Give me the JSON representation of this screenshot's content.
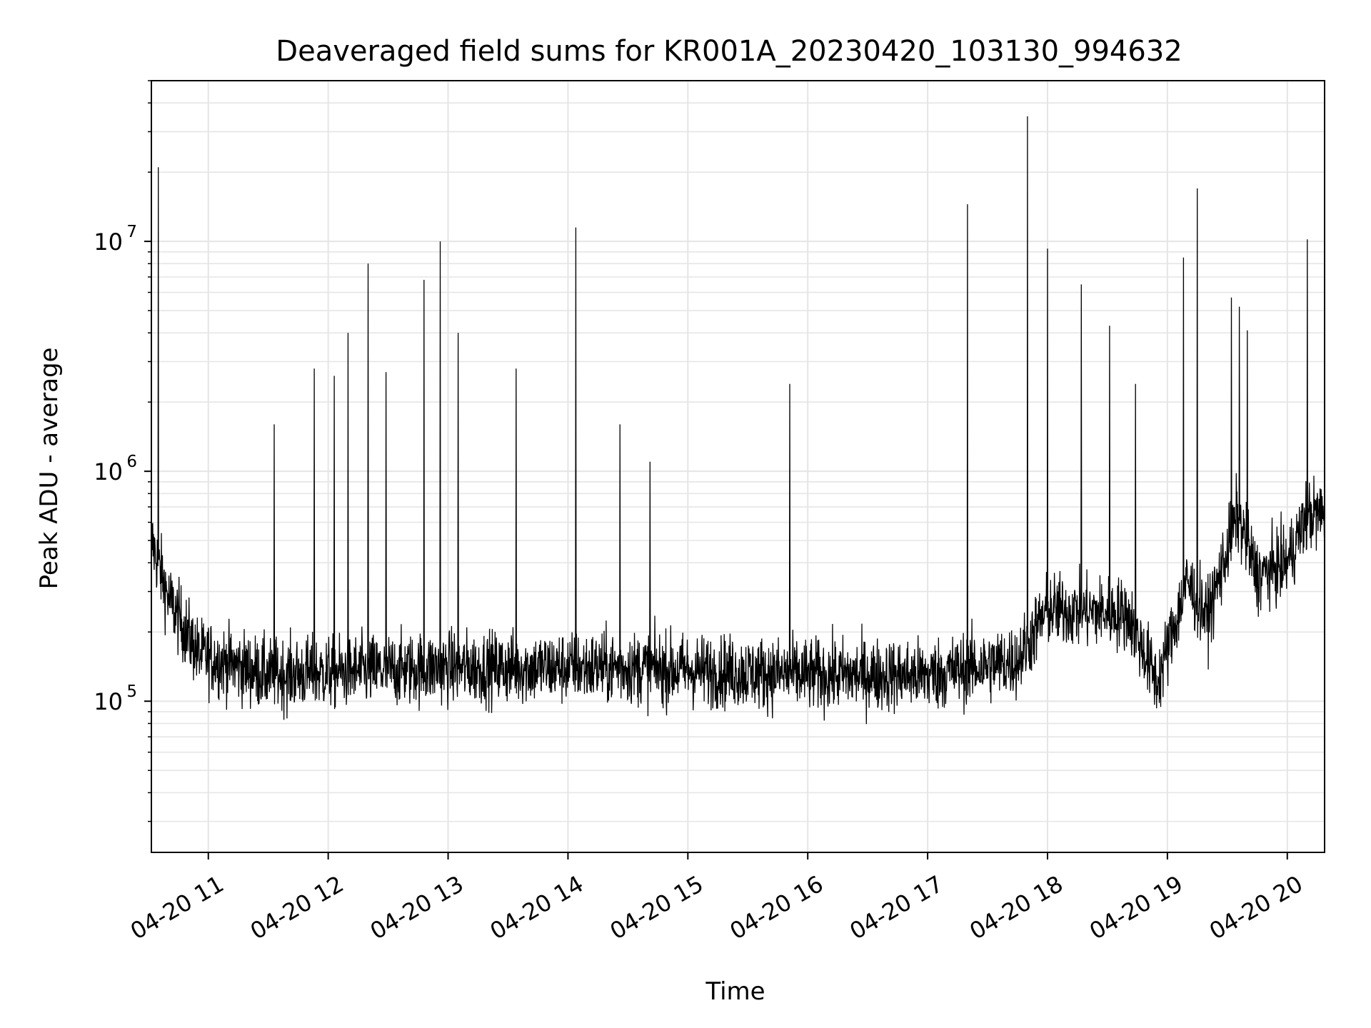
{
  "chart_data": {
    "type": "line",
    "title": "Deaveraged field sums for KR001A_20230420_103130_994632",
    "xlabel": "Time",
    "ylabel": "Peak ADU - average",
    "yscale": "log",
    "ylim": [
      22000,
      50000000
    ],
    "xlim": [
      "2023-04-20 10:31:30",
      "2023-04-20 20:18:40"
    ],
    "grid": true,
    "line_color": "#000000",
    "grid_color": "#e5e5e5",
    "x_ticks": [
      {
        "time": "2023-04-20 11:00",
        "label": "04-20 11"
      },
      {
        "time": "2023-04-20 12:00",
        "label": "04-20 12"
      },
      {
        "time": "2023-04-20 13:00",
        "label": "04-20 13"
      },
      {
        "time": "2023-04-20 14:00",
        "label": "04-20 14"
      },
      {
        "time": "2023-04-20 15:00",
        "label": "04-20 15"
      },
      {
        "time": "2023-04-20 16:00",
        "label": "04-20 16"
      },
      {
        "time": "2023-04-20 17:00",
        "label": "04-20 17"
      },
      {
        "time": "2023-04-20 18:00",
        "label": "04-20 18"
      },
      {
        "time": "2023-04-20 19:00",
        "label": "04-20 19"
      },
      {
        "time": "2023-04-20 20:00",
        "label": "04-20 20"
      }
    ],
    "y_ticks": [
      {
        "value": 100000,
        "base": "10",
        "exp": "5"
      },
      {
        "value": 1000000,
        "base": "10",
        "exp": "6"
      },
      {
        "value": 10000000,
        "base": "10",
        "exp": "7"
      }
    ],
    "series": [
      {
        "baseline": [
          {
            "time": "2023-04-20 10:31:30",
            "value": 500000
          },
          {
            "time": "2023-04-20 10:40",
            "value": 280000
          },
          {
            "time": "2023-04-20 10:55",
            "value": 160000
          },
          {
            "time": "2023-04-20 11:30",
            "value": 130000
          },
          {
            "time": "2023-04-20 13:00",
            "value": 140000
          },
          {
            "time": "2023-04-20 14:30",
            "value": 140000
          },
          {
            "time": "2023-04-20 16:00",
            "value": 130000
          },
          {
            "time": "2023-04-20 17:00",
            "value": 130000
          },
          {
            "time": "2023-04-20 17:45",
            "value": 150000
          },
          {
            "time": "2023-04-20 18:00",
            "value": 250000
          },
          {
            "time": "2023-04-20 18:40",
            "value": 240000
          },
          {
            "time": "2023-04-20 18:55",
            "value": 120000
          },
          {
            "time": "2023-04-20 19:10",
            "value": 330000
          },
          {
            "time": "2023-04-20 19:20",
            "value": 230000
          },
          {
            "time": "2023-04-20 19:35",
            "value": 650000
          },
          {
            "time": "2023-04-20 19:45",
            "value": 350000
          },
          {
            "time": "2023-04-20 20:00",
            "value": 400000
          },
          {
            "time": "2023-04-20 20:10",
            "value": 650000
          },
          {
            "time": "2023-04-20 20:18:40",
            "value": 650000
          }
        ],
        "spikes": [
          {
            "time": "2023-04-20 10:35",
            "value": 21000000
          },
          {
            "time": "2023-04-20 11:33",
            "value": 1600000
          },
          {
            "time": "2023-04-20 11:53",
            "value": 2800000
          },
          {
            "time": "2023-04-20 12:03",
            "value": 2600000
          },
          {
            "time": "2023-04-20 12:10",
            "value": 4000000
          },
          {
            "time": "2023-04-20 12:20",
            "value": 8000000
          },
          {
            "time": "2023-04-20 12:29",
            "value": 2700000
          },
          {
            "time": "2023-04-20 12:48",
            "value": 6800000
          },
          {
            "time": "2023-04-20 12:56",
            "value": 10000000
          },
          {
            "time": "2023-04-20 13:05",
            "value": 4000000
          },
          {
            "time": "2023-04-20 13:34",
            "value": 2800000
          },
          {
            "time": "2023-04-20 14:04",
            "value": 11500000
          },
          {
            "time": "2023-04-20 14:26",
            "value": 1600000
          },
          {
            "time": "2023-04-20 14:41",
            "value": 1100000
          },
          {
            "time": "2023-04-20 15:51",
            "value": 2400000
          },
          {
            "time": "2023-04-20 17:20",
            "value": 14500000
          },
          {
            "time": "2023-04-20 17:50",
            "value": 35000000
          },
          {
            "time": "2023-04-20 18:00",
            "value": 9300000
          },
          {
            "time": "2023-04-20 18:17",
            "value": 6500000
          },
          {
            "time": "2023-04-20 18:31",
            "value": 4300000
          },
          {
            "time": "2023-04-20 18:44",
            "value": 2400000
          },
          {
            "time": "2023-04-20 19:08",
            "value": 8500000
          },
          {
            "time": "2023-04-20 19:15",
            "value": 17000000
          },
          {
            "time": "2023-04-20 19:32",
            "value": 5700000
          },
          {
            "time": "2023-04-20 19:36",
            "value": 5200000
          },
          {
            "time": "2023-04-20 19:40",
            "value": 4100000
          },
          {
            "time": "2023-04-20 20:10",
            "value": 10200000
          }
        ]
      }
    ]
  }
}
